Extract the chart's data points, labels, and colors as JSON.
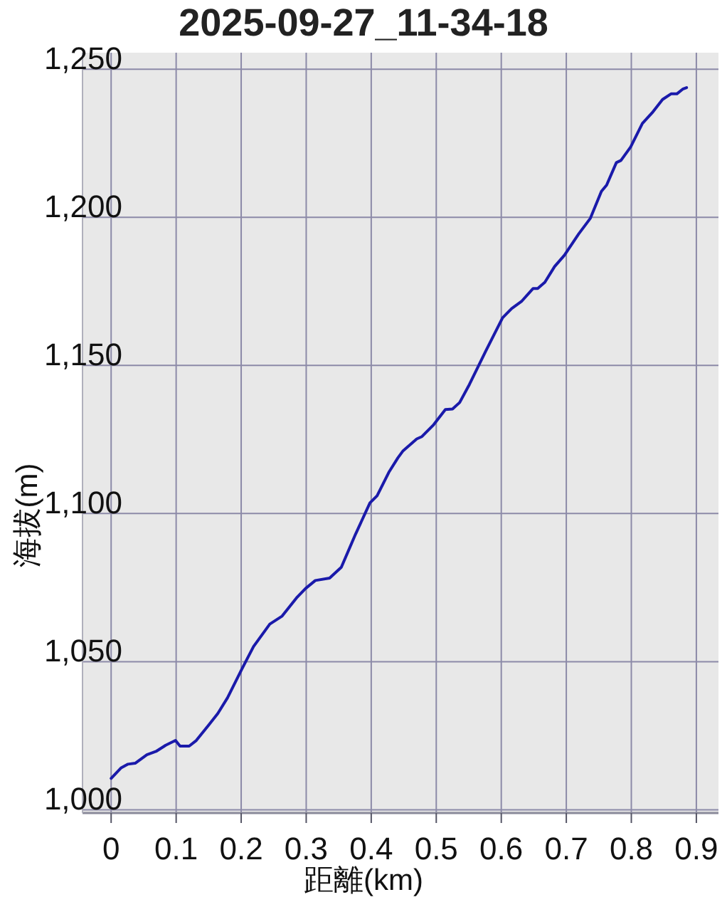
{
  "chart_data": {
    "type": "line",
    "title": "2025-09-27_11-34-18",
    "xlabel": "距離(km)",
    "ylabel": "海拔(m)",
    "x": [
      0,
      0.015,
      0.026,
      0.037,
      0.055,
      0.069,
      0.084,
      0.099,
      0.106,
      0.12,
      0.131,
      0.15,
      0.164,
      0.179,
      0.201,
      0.219,
      0.244,
      0.263,
      0.285,
      0.299,
      0.314,
      0.336,
      0.354,
      0.376,
      0.398,
      0.409,
      0.427,
      0.441,
      0.449,
      0.47,
      0.478,
      0.496,
      0.514,
      0.525,
      0.536,
      0.551,
      0.576,
      0.602,
      0.616,
      0.631,
      0.649,
      0.656,
      0.667,
      0.682,
      0.697,
      0.719,
      0.737,
      0.754,
      0.762,
      0.777,
      0.784,
      0.799,
      0.817,
      0.832,
      0.848,
      0.861,
      0.87,
      0.879,
      0.885
    ],
    "series": [
      {
        "color": "#1a1aaa",
        "values": [
          1010.6,
          1014.1,
          1015.4,
          1015.7,
          1018.6,
          1019.7,
          1021.8,
          1023.4,
          1021.5,
          1021.5,
          1023.4,
          1028.6,
          1032.5,
          1037.8,
          1047.5,
          1055.1,
          1062.7,
          1065.4,
          1071.5,
          1074.7,
          1077.4,
          1078.2,
          1081.9,
          1093.1,
          1103.6,
          1106.0,
          1113.9,
          1118.8,
          1121.2,
          1125.2,
          1126.0,
          1130.0,
          1135.1,
          1135.3,
          1137.5,
          1143.6,
          1154.8,
          1166.1,
          1169.2,
          1171.6,
          1176.0,
          1176.0,
          1178.1,
          1183.4,
          1187.2,
          1194.4,
          1199.7,
          1208.8,
          1210.9,
          1218.5,
          1219.2,
          1223.8,
          1231.7,
          1235.3,
          1239.8,
          1241.7,
          1241.7,
          1243.3,
          1243.8
        ]
      }
    ],
    "xlim": [
      -0.044,
      0.934
    ],
    "ylim": [
      998.9,
      1255.6
    ],
    "xticks": [
      0,
      0.1,
      0.2,
      0.3,
      0.4,
      0.5,
      0.6,
      0.7,
      0.8,
      0.9
    ],
    "yticks": [
      {
        "value": 1000,
        "label": "1,000"
      },
      {
        "value": 1050,
        "label": "1,050"
      },
      {
        "value": 1100,
        "label": "1,100"
      },
      {
        "value": 1150,
        "label": "1,150"
      },
      {
        "value": 1200,
        "label": "1,200"
      },
      {
        "value": 1250,
        "label": "1,250"
      }
    ],
    "grid": true,
    "marker": "none",
    "line_style": "solid"
  }
}
